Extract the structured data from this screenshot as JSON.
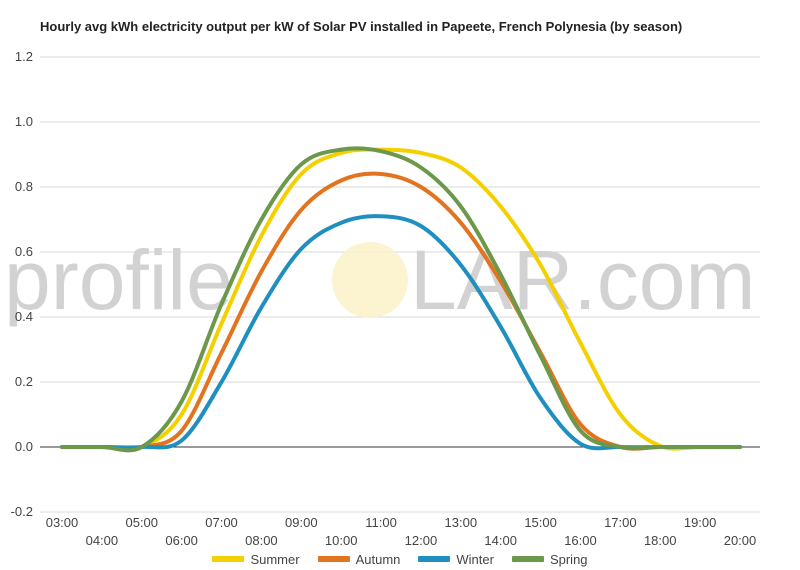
{
  "chart_data": {
    "type": "line",
    "title": "Hourly avg kWh electricity output per kW of Solar PV installed in Papeete, French Polynesia (by season)",
    "xlabel": "",
    "ylabel": "",
    "x": [
      "03:00",
      "04:00",
      "05:00",
      "06:00",
      "07:00",
      "08:00",
      "09:00",
      "10:00",
      "11:00",
      "12:00",
      "13:00",
      "14:00",
      "15:00",
      "16:00",
      "17:00",
      "18:00",
      "19:00",
      "20:00"
    ],
    "ylim": [
      -0.2,
      1.2
    ],
    "yticks": [
      "-0.2",
      "0.0",
      "0.2",
      "0.4",
      "0.6",
      "0.8",
      "1.0",
      "1.2"
    ],
    "grid": true,
    "legend_position": "bottom",
    "series": [
      {
        "name": "Summer",
        "color": "#f5d000",
        "values": [
          0,
          0,
          0,
          0.1,
          0.38,
          0.65,
          0.84,
          0.905,
          0.915,
          0.905,
          0.86,
          0.74,
          0.56,
          0.32,
          0.1,
          0.003,
          0,
          0
        ]
      },
      {
        "name": "Autumn",
        "color": "#e2741f",
        "values": [
          0,
          0,
          0,
          0.05,
          0.29,
          0.54,
          0.73,
          0.82,
          0.84,
          0.8,
          0.69,
          0.51,
          0.29,
          0.07,
          0,
          0,
          0,
          0
        ]
      },
      {
        "name": "Winter",
        "color": "#1f8fbf",
        "values": [
          0,
          0,
          0,
          0.02,
          0.2,
          0.43,
          0.61,
          0.69,
          0.71,
          0.68,
          0.56,
          0.37,
          0.15,
          0.01,
          0,
          0,
          0,
          0
        ]
      },
      {
        "name": "Spring",
        "color": "#6b984a",
        "values": [
          0,
          0,
          0,
          0.14,
          0.44,
          0.7,
          0.87,
          0.915,
          0.91,
          0.86,
          0.74,
          0.53,
          0.28,
          0.05,
          0,
          0,
          0,
          0
        ]
      }
    ]
  },
  "watermark": {
    "left": "profile",
    "right": "LAR.com"
  }
}
